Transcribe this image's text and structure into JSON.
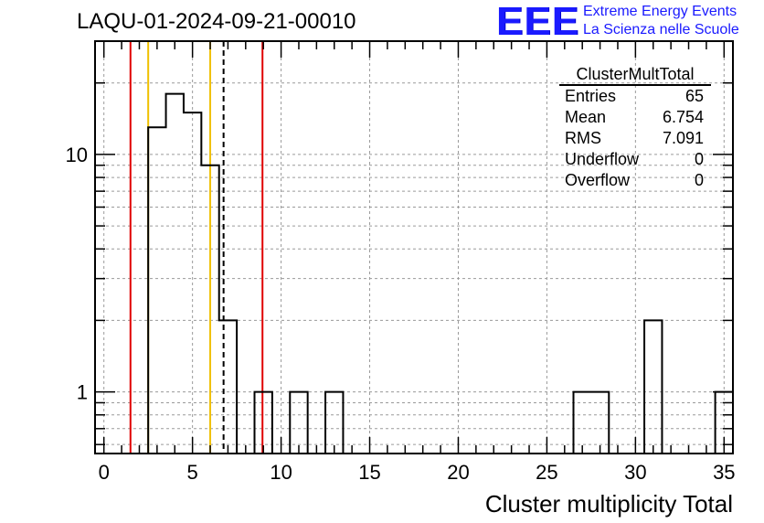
{
  "title": "LAQU-01-2024-09-21-00010",
  "logo": {
    "mark": "EEE",
    "line1": "Extreme Energy Events",
    "line2": "La Scienza nelle Scuole"
  },
  "stats": {
    "name": "ClusterMultTotal",
    "rows": [
      {
        "label": "Entries",
        "value": "65"
      },
      {
        "label": "Mean",
        "value": "6.754"
      },
      {
        "label": "RMS",
        "value": "7.091"
      },
      {
        "label": "Underflow",
        "value": "0"
      },
      {
        "label": "Overflow",
        "value": "0"
      }
    ]
  },
  "chart_data": {
    "type": "bar",
    "xlabel": "Cluster multiplicity Total",
    "ylabel": "",
    "xlim": [
      -0.5,
      35.5
    ],
    "ylim": [
      0.55,
      30
    ],
    "yscale": "log",
    "grid": true,
    "x_ticks": [
      0,
      5,
      10,
      15,
      20,
      25,
      30,
      35
    ],
    "y_ticks": [
      1,
      10
    ],
    "bin_edges": [
      2.5,
      3.5,
      4.5,
      5.5,
      6.5,
      7.5,
      8.5,
      9.5,
      10.5,
      11.5,
      12.5,
      13.5,
      26.5,
      27.5,
      28.5,
      30.5,
      31.5,
      34.5,
      35.5
    ],
    "bins": [
      {
        "lo": 2.5,
        "hi": 3.5,
        "count": 13
      },
      {
        "lo": 3.5,
        "hi": 4.5,
        "count": 18
      },
      {
        "lo": 4.5,
        "hi": 5.5,
        "count": 15
      },
      {
        "lo": 5.5,
        "hi": 6.5,
        "count": 9
      },
      {
        "lo": 6.5,
        "hi": 7.5,
        "count": 2
      },
      {
        "lo": 8.5,
        "hi": 9.5,
        "count": 1
      },
      {
        "lo": 10.5,
        "hi": 11.5,
        "count": 1
      },
      {
        "lo": 12.5,
        "hi": 13.5,
        "count": 1
      },
      {
        "lo": 26.5,
        "hi": 27.5,
        "count": 1
      },
      {
        "lo": 27.5,
        "hi": 28.5,
        "count": 1
      },
      {
        "lo": 30.5,
        "hi": 31.5,
        "count": 2
      },
      {
        "lo": 34.5,
        "hi": 35.5,
        "count": 1
      }
    ],
    "vertical_lines": [
      {
        "x": 1.5,
        "color": "#e00000",
        "style": "solid"
      },
      {
        "x": 2.5,
        "color": "#f0c000",
        "style": "solid"
      },
      {
        "x": 6.0,
        "color": "#f0c000",
        "style": "solid"
      },
      {
        "x": 6.754,
        "color": "#000000",
        "style": "dashed"
      },
      {
        "x": 8.95,
        "color": "#e00000",
        "style": "solid"
      }
    ]
  }
}
